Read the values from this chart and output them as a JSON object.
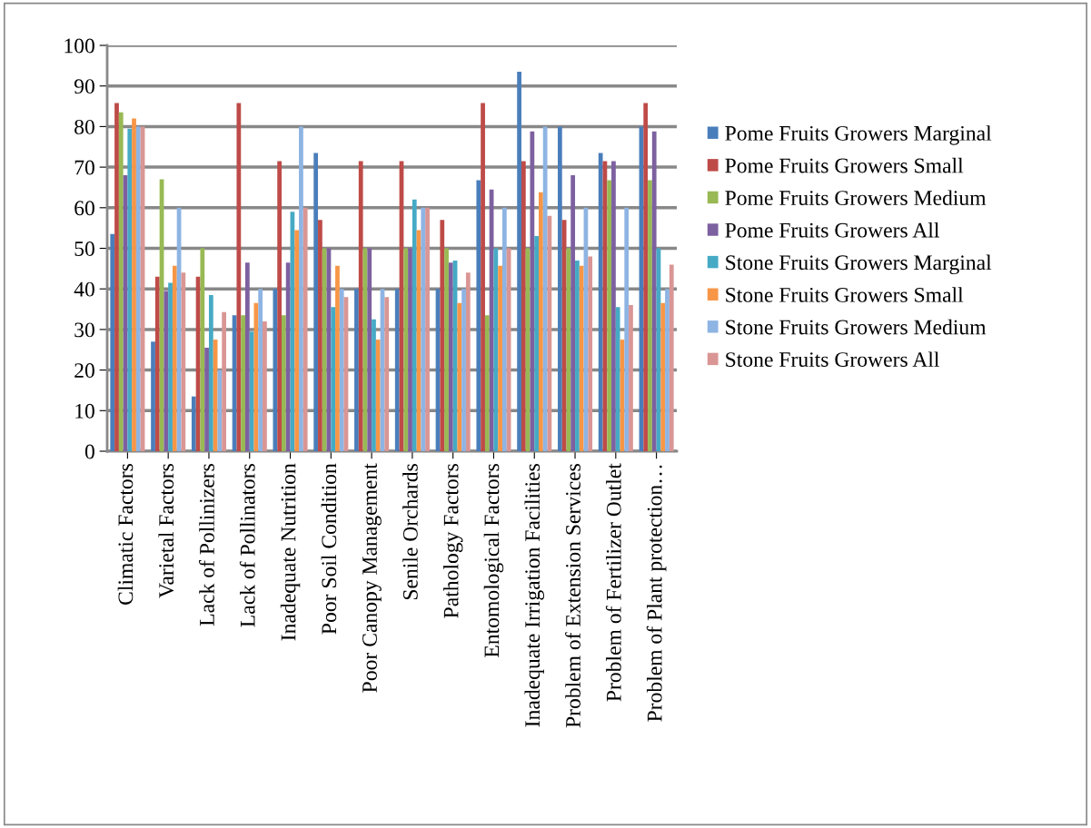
{
  "chart_data": {
    "type": "bar",
    "categories": [
      "Climatic Factors",
      "Varietal Factors",
      "Lack of Pollinizers",
      "Lack of Pollinators",
      "Inadequate Nutrition",
      "Poor Soil Condition",
      "Poor Canopy Management",
      "Senile Orchards",
      "Pathology Factors",
      "Entomological Factors",
      "Inadequate Irrigation Facilities",
      "Problem of Extension Services",
      "Problem of Fertilizer Outlet",
      "Problem of Plant protection…"
    ],
    "series": [
      {
        "name": "Pome Fruits Growers Marginal",
        "color": "#4a7ebb",
        "values": [
          53.5,
          27,
          13.5,
          33.5,
          40,
          73.5,
          40,
          40,
          40,
          66.8,
          93.5,
          80,
          73.5,
          80
        ]
      },
      {
        "name": "Pome Fruits Growers Small",
        "color": "#be4b48",
        "values": [
          85.8,
          43,
          43,
          85.8,
          71.5,
          57,
          71.5,
          71.5,
          57,
          85.8,
          71.5,
          57,
          71.5,
          85.8
        ]
      },
      {
        "name": "Pome Fruits Growers Medium",
        "color": "#98b954",
        "values": [
          83.5,
          67,
          50,
          33.5,
          33.5,
          50,
          50,
          50,
          50,
          33.5,
          50,
          50,
          66.8,
          66.8
        ]
      },
      {
        "name": "Pome Fruits Growers All",
        "color": "#7d60a0",
        "values": [
          68,
          39.5,
          25.5,
          46.5,
          46.5,
          50,
          50,
          50,
          46.5,
          64.5,
          78.8,
          68,
          71.5,
          78.8
        ]
      },
      {
        "name": "Stone Fruits Growers Marginal",
        "color": "#46aac5",
        "values": [
          79.5,
          41.5,
          38.5,
          29.5,
          59,
          35.5,
          32.5,
          62,
          47,
          50,
          53,
          47,
          35.5,
          50
        ]
      },
      {
        "name": "Stone Fruits Growers Small",
        "color": "#f79646",
        "values": [
          82,
          45.7,
          27.5,
          36.5,
          54.5,
          45.7,
          27.5,
          54.5,
          36.5,
          45.7,
          63.8,
          45.7,
          27.5,
          36.5
        ]
      },
      {
        "name": "Stone Fruits Growers Medium",
        "color": "#8eb4e3",
        "values": [
          80,
          60,
          20,
          40,
          80,
          40,
          40,
          60,
          40,
          60,
          80,
          60,
          60,
          40
        ]
      },
      {
        "name": "Stone Fruits Growers All",
        "color": "#d99694",
        "values": [
          80,
          44,
          34.3,
          32,
          60,
          38,
          38,
          60,
          44,
          50,
          58,
          48,
          36,
          46
        ]
      }
    ],
    "ylim": [
      0,
      100
    ],
    "yticks": [
      0,
      10,
      20,
      30,
      40,
      50,
      60,
      70,
      80,
      90,
      100
    ],
    "grid": "y",
    "legend": "right"
  }
}
